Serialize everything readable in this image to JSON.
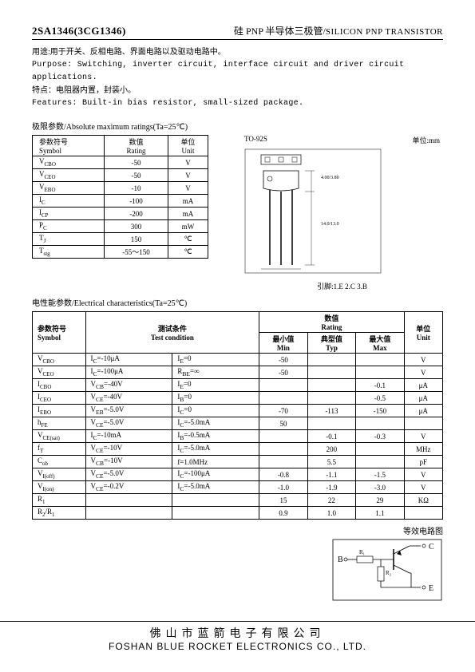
{
  "header": {
    "part_no": "2SA1346(3CG1346)",
    "title_cn": "硅 PNP 半导体三极管/",
    "title_en": "SILICON PNP TRANSISTOR"
  },
  "desc": {
    "usage_cn": "用途:用于开关、反相电路、界面电路以及驱动电路中。",
    "purpose_en": "Purpose: Switching, inverter circuit, interface circuit and driver circuit applications.",
    "feature_cn": "特点：电阻器内置，封装小。",
    "features_en": "Features: Built-in bias resistor, small-sized package."
  },
  "abs_ratings": {
    "section_title": "极限参数/Absolute maximum ratings(Ta=25℃)",
    "header": {
      "symbol_cn": "参数符号",
      "symbol_en": "Symbol",
      "rating_cn": "数值",
      "rating_en": "Rating",
      "unit_cn": "单位",
      "unit_en": "Unit"
    },
    "rows": [
      {
        "sym": "V",
        "sub": "CBO",
        "rating": "-50",
        "unit": "V"
      },
      {
        "sym": "V",
        "sub": "CEO",
        "rating": "-50",
        "unit": "V"
      },
      {
        "sym": "V",
        "sub": "EBO",
        "rating": "-10",
        "unit": "V"
      },
      {
        "sym": "I",
        "sub": "C",
        "rating": "-100",
        "unit": "mA"
      },
      {
        "sym": "I",
        "sub": "CP",
        "rating": "-200",
        "unit": "mA"
      },
      {
        "sym": "P",
        "sub": "C",
        "rating": "300",
        "unit": "mW"
      },
      {
        "sym": "T",
        "sub": "J",
        "rating": "150",
        "unit": "℃"
      },
      {
        "sym": "T",
        "sub": "stg",
        "rating": "-55～150",
        "unit": "℃"
      }
    ]
  },
  "package": {
    "name": "TO-92S",
    "unit_label": "单位:mm",
    "pinout": "引脚:1.E  2.C  3.B"
  },
  "elec": {
    "section_title": "电性能参数/Electrical characteristics(Ta=25℃)",
    "header": {
      "symbol_cn": "参数符号",
      "symbol_en": "Symbol",
      "cond_cn": "测试条件",
      "cond_en": "Test condition",
      "rating_cn": "数值",
      "rating_en": "Rating",
      "min_cn": "最小值",
      "min_en": "Min",
      "typ_cn": "典型值",
      "typ_en": "Typ",
      "max_cn": "最大值",
      "max_en": "Max",
      "unit_cn": "单位",
      "unit_en": "Unit"
    },
    "rows": [
      {
        "sym": "V",
        "sub": "CBO",
        "c1": "I<sub>C</sub>=-10μA",
        "c2": "I<sub>E</sub>=0",
        "min": "-50",
        "typ": "",
        "max": "",
        "unit": "V"
      },
      {
        "sym": "V",
        "sub": "CEO",
        "c1": "I<sub>C</sub>=-100μA",
        "c2": "R<sub>BE</sub>=∞",
        "min": "-50",
        "typ": "",
        "max": "",
        "unit": "V"
      },
      {
        "sym": "I",
        "sub": "CBO",
        "c1": "V<sub>CB</sub>=-40V",
        "c2": "I<sub>E</sub>=0",
        "min": "",
        "typ": "",
        "max": "-0.1",
        "unit": "μA"
      },
      {
        "sym": "I",
        "sub": "CEO",
        "c1": "V<sub>CE</sub>=-40V",
        "c2": "I<sub>B</sub>=0",
        "min": "",
        "typ": "",
        "max": "-0.5",
        "unit": "μA"
      },
      {
        "sym": "I",
        "sub": "EBO",
        "c1": "V<sub>EB</sub>=-5.0V",
        "c2": "I<sub>C</sub>=0",
        "min": "-70",
        "typ": "-113",
        "max": "-150",
        "unit": "μA"
      },
      {
        "sym": "h",
        "sub": "FE",
        "c1": "V<sub>CE</sub>=-5.0V",
        "c2": "I<sub>C</sub>=-5.0mA",
        "min": "50",
        "typ": "",
        "max": "",
        "unit": ""
      },
      {
        "sym": "V",
        "sub": "CE(sat)",
        "c1": "I<sub>C</sub>=-10mA",
        "c2": "I<sub>B</sub>=-0.5mA",
        "min": "",
        "typ": "-0.1",
        "max": "-0.3",
        "unit": "V"
      },
      {
        "sym": "f",
        "sub": "T",
        "c1": "V<sub>CE</sub>=-10V",
        "c2": "I<sub>C</sub>=-5.0mA",
        "min": "",
        "typ": "200",
        "max": "",
        "unit": "MHz"
      },
      {
        "sym": "C",
        "sub": "ob",
        "c1": "V<sub>CB</sub>=-10V",
        "c2": "f=1.0MHz",
        "min": "",
        "typ": "5.5",
        "max": "",
        "unit": "pF"
      },
      {
        "sym": "V",
        "sub": "I(off)",
        "c1": "V<sub>CE</sub>=-5.0V",
        "c2": "I<sub>C</sub>=-100μA",
        "min": "-0.8",
        "typ": "-1.1",
        "max": "-1.5",
        "unit": "V"
      },
      {
        "sym": "V",
        "sub": "I(on)",
        "c1": "V<sub>CE</sub>=-0.2V",
        "c2": "I<sub>C</sub>=-5.0mA",
        "min": "-1.0",
        "typ": "-1.9",
        "max": "-3.0",
        "unit": "V"
      },
      {
        "sym": "R",
        "sub": "1",
        "c1": "",
        "c2": "",
        "min": "15",
        "typ": "22",
        "max": "29",
        "unit": "KΩ"
      },
      {
        "sym": "R",
        "sub": "2",
        "sym2": "/R",
        "sub2": "1",
        "c1": "",
        "c2": "",
        "min": "0.9",
        "typ": "1.0",
        "max": "1.1",
        "unit": ""
      }
    ]
  },
  "circuit": {
    "label": "等效电路图",
    "terminals": {
      "b": "B",
      "c": "C",
      "e": "E"
    },
    "resistors": {
      "r1": "R₁",
      "r2": "R₂"
    }
  },
  "footer": {
    "cn": "佛山市蓝箭电子有限公司",
    "en": "FOSHAN BLUE ROCKET ELECTRONICS CO., LTD."
  },
  "colors": {
    "text": "#000000",
    "bg": "#ffffff",
    "border": "#000000"
  }
}
